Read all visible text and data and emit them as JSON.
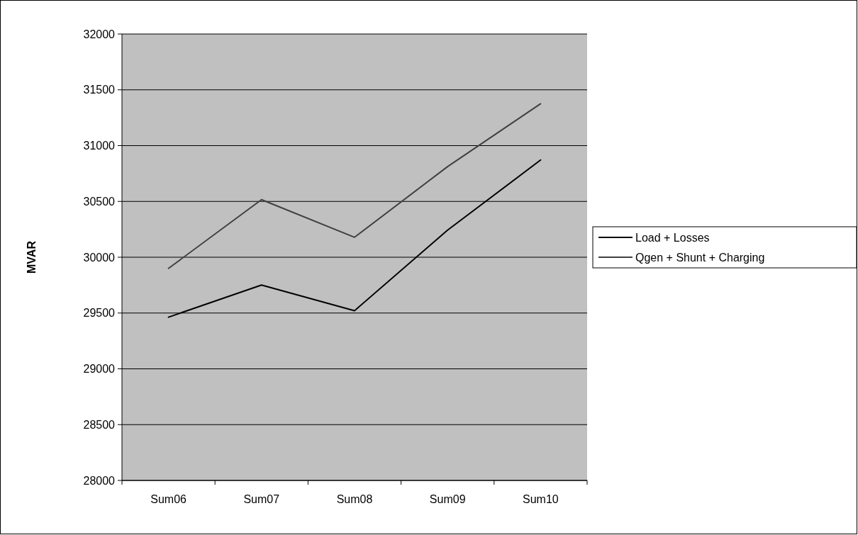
{
  "chart_data": {
    "type": "line",
    "ylabel": "MVAR",
    "categories": [
      "Sum06",
      "Sum07",
      "Sum08",
      "Sum09",
      "Sum10"
    ],
    "series": [
      {
        "name": "Load + Losses",
        "color": "#000000",
        "values": [
          29463,
          29751,
          29521,
          30243,
          30871
        ]
      },
      {
        "name": "Qgen + Shunt + Charging",
        "color": "#404040",
        "values": [
          29900,
          30516,
          30179,
          30812,
          31375
        ]
      }
    ],
    "ylim": [
      28000,
      32000
    ],
    "yticks": [
      28000,
      28500,
      29000,
      29500,
      30000,
      30500,
      31000,
      31500,
      32000
    ],
    "grid": "y",
    "legend": "right",
    "marker": "none",
    "line_style": "solid"
  }
}
